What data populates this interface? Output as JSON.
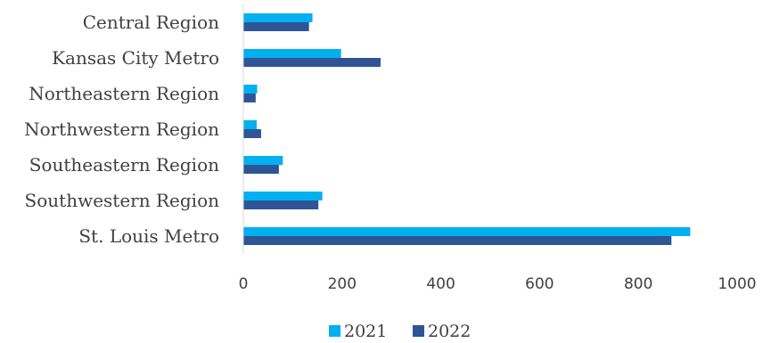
{
  "chart_data": {
    "type": "bar",
    "orientation": "horizontal",
    "categories": [
      "Central Region",
      "Kansas City Metro",
      "Northeastern Region",
      "Northwestern Region",
      "Southeastern Region",
      "Southwestern Region",
      "St. Louis Metro"
    ],
    "series": [
      {
        "name": "2021",
        "color": "#00B0F0",
        "values": [
          140,
          198,
          28,
          27,
          80,
          160,
          905
        ]
      },
      {
        "name": "2022",
        "color": "#2F5597",
        "values": [
          133,
          278,
          25,
          36,
          72,
          152,
          867
        ]
      }
    ],
    "xlim": [
      0,
      1000
    ],
    "xticks": [
      0,
      200,
      400,
      600,
      800,
      1000
    ],
    "tick_labels": [
      "0",
      "200",
      "400",
      "600",
      "800",
      "1000"
    ],
    "grid": false,
    "legend_position": "bottom"
  }
}
